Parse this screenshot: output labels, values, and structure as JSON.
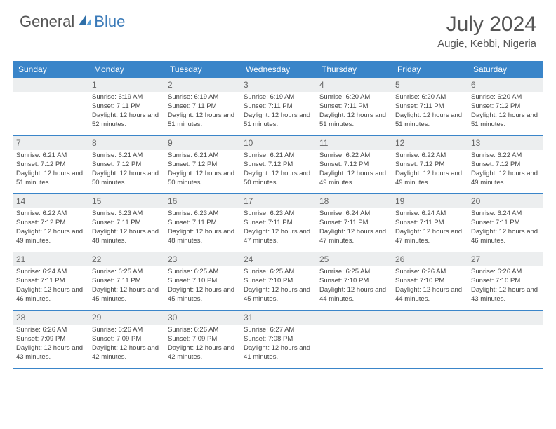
{
  "brand": {
    "part1": "General",
    "part2": "Blue"
  },
  "title": "July 2024",
  "location": "Augie, Kebbi, Nigeria",
  "colors": {
    "header_bg": "#3a85c9",
    "header_text": "#ffffff",
    "daynum_bg": "#eceeef",
    "border": "#3a85c9",
    "text": "#444444",
    "brand_blue": "#3a7ab8"
  },
  "day_names": [
    "Sunday",
    "Monday",
    "Tuesday",
    "Wednesday",
    "Thursday",
    "Friday",
    "Saturday"
  ],
  "weeks": [
    [
      null,
      {
        "n": "1",
        "sr": "6:19 AM",
        "ss": "7:11 PM",
        "dl": "12 hours and 52 minutes."
      },
      {
        "n": "2",
        "sr": "6:19 AM",
        "ss": "7:11 PM",
        "dl": "12 hours and 51 minutes."
      },
      {
        "n": "3",
        "sr": "6:19 AM",
        "ss": "7:11 PM",
        "dl": "12 hours and 51 minutes."
      },
      {
        "n": "4",
        "sr": "6:20 AM",
        "ss": "7:11 PM",
        "dl": "12 hours and 51 minutes."
      },
      {
        "n": "5",
        "sr": "6:20 AM",
        "ss": "7:11 PM",
        "dl": "12 hours and 51 minutes."
      },
      {
        "n": "6",
        "sr": "6:20 AM",
        "ss": "7:12 PM",
        "dl": "12 hours and 51 minutes."
      }
    ],
    [
      {
        "n": "7",
        "sr": "6:21 AM",
        "ss": "7:12 PM",
        "dl": "12 hours and 51 minutes."
      },
      {
        "n": "8",
        "sr": "6:21 AM",
        "ss": "7:12 PM",
        "dl": "12 hours and 50 minutes."
      },
      {
        "n": "9",
        "sr": "6:21 AM",
        "ss": "7:12 PM",
        "dl": "12 hours and 50 minutes."
      },
      {
        "n": "10",
        "sr": "6:21 AM",
        "ss": "7:12 PM",
        "dl": "12 hours and 50 minutes."
      },
      {
        "n": "11",
        "sr": "6:22 AM",
        "ss": "7:12 PM",
        "dl": "12 hours and 49 minutes."
      },
      {
        "n": "12",
        "sr": "6:22 AM",
        "ss": "7:12 PM",
        "dl": "12 hours and 49 minutes."
      },
      {
        "n": "13",
        "sr": "6:22 AM",
        "ss": "7:12 PM",
        "dl": "12 hours and 49 minutes."
      }
    ],
    [
      {
        "n": "14",
        "sr": "6:22 AM",
        "ss": "7:12 PM",
        "dl": "12 hours and 49 minutes."
      },
      {
        "n": "15",
        "sr": "6:23 AM",
        "ss": "7:11 PM",
        "dl": "12 hours and 48 minutes."
      },
      {
        "n": "16",
        "sr": "6:23 AM",
        "ss": "7:11 PM",
        "dl": "12 hours and 48 minutes."
      },
      {
        "n": "17",
        "sr": "6:23 AM",
        "ss": "7:11 PM",
        "dl": "12 hours and 47 minutes."
      },
      {
        "n": "18",
        "sr": "6:24 AM",
        "ss": "7:11 PM",
        "dl": "12 hours and 47 minutes."
      },
      {
        "n": "19",
        "sr": "6:24 AM",
        "ss": "7:11 PM",
        "dl": "12 hours and 47 minutes."
      },
      {
        "n": "20",
        "sr": "6:24 AM",
        "ss": "7:11 PM",
        "dl": "12 hours and 46 minutes."
      }
    ],
    [
      {
        "n": "21",
        "sr": "6:24 AM",
        "ss": "7:11 PM",
        "dl": "12 hours and 46 minutes."
      },
      {
        "n": "22",
        "sr": "6:25 AM",
        "ss": "7:11 PM",
        "dl": "12 hours and 45 minutes."
      },
      {
        "n": "23",
        "sr": "6:25 AM",
        "ss": "7:10 PM",
        "dl": "12 hours and 45 minutes."
      },
      {
        "n": "24",
        "sr": "6:25 AM",
        "ss": "7:10 PM",
        "dl": "12 hours and 45 minutes."
      },
      {
        "n": "25",
        "sr": "6:25 AM",
        "ss": "7:10 PM",
        "dl": "12 hours and 44 minutes."
      },
      {
        "n": "26",
        "sr": "6:26 AM",
        "ss": "7:10 PM",
        "dl": "12 hours and 44 minutes."
      },
      {
        "n": "27",
        "sr": "6:26 AM",
        "ss": "7:10 PM",
        "dl": "12 hours and 43 minutes."
      }
    ],
    [
      {
        "n": "28",
        "sr": "6:26 AM",
        "ss": "7:09 PM",
        "dl": "12 hours and 43 minutes."
      },
      {
        "n": "29",
        "sr": "6:26 AM",
        "ss": "7:09 PM",
        "dl": "12 hours and 42 minutes."
      },
      {
        "n": "30",
        "sr": "6:26 AM",
        "ss": "7:09 PM",
        "dl": "12 hours and 42 minutes."
      },
      {
        "n": "31",
        "sr": "6:27 AM",
        "ss": "7:08 PM",
        "dl": "12 hours and 41 minutes."
      },
      null,
      null,
      null
    ]
  ],
  "labels": {
    "sunrise": "Sunrise:",
    "sunset": "Sunset:",
    "daylight": "Daylight:"
  }
}
